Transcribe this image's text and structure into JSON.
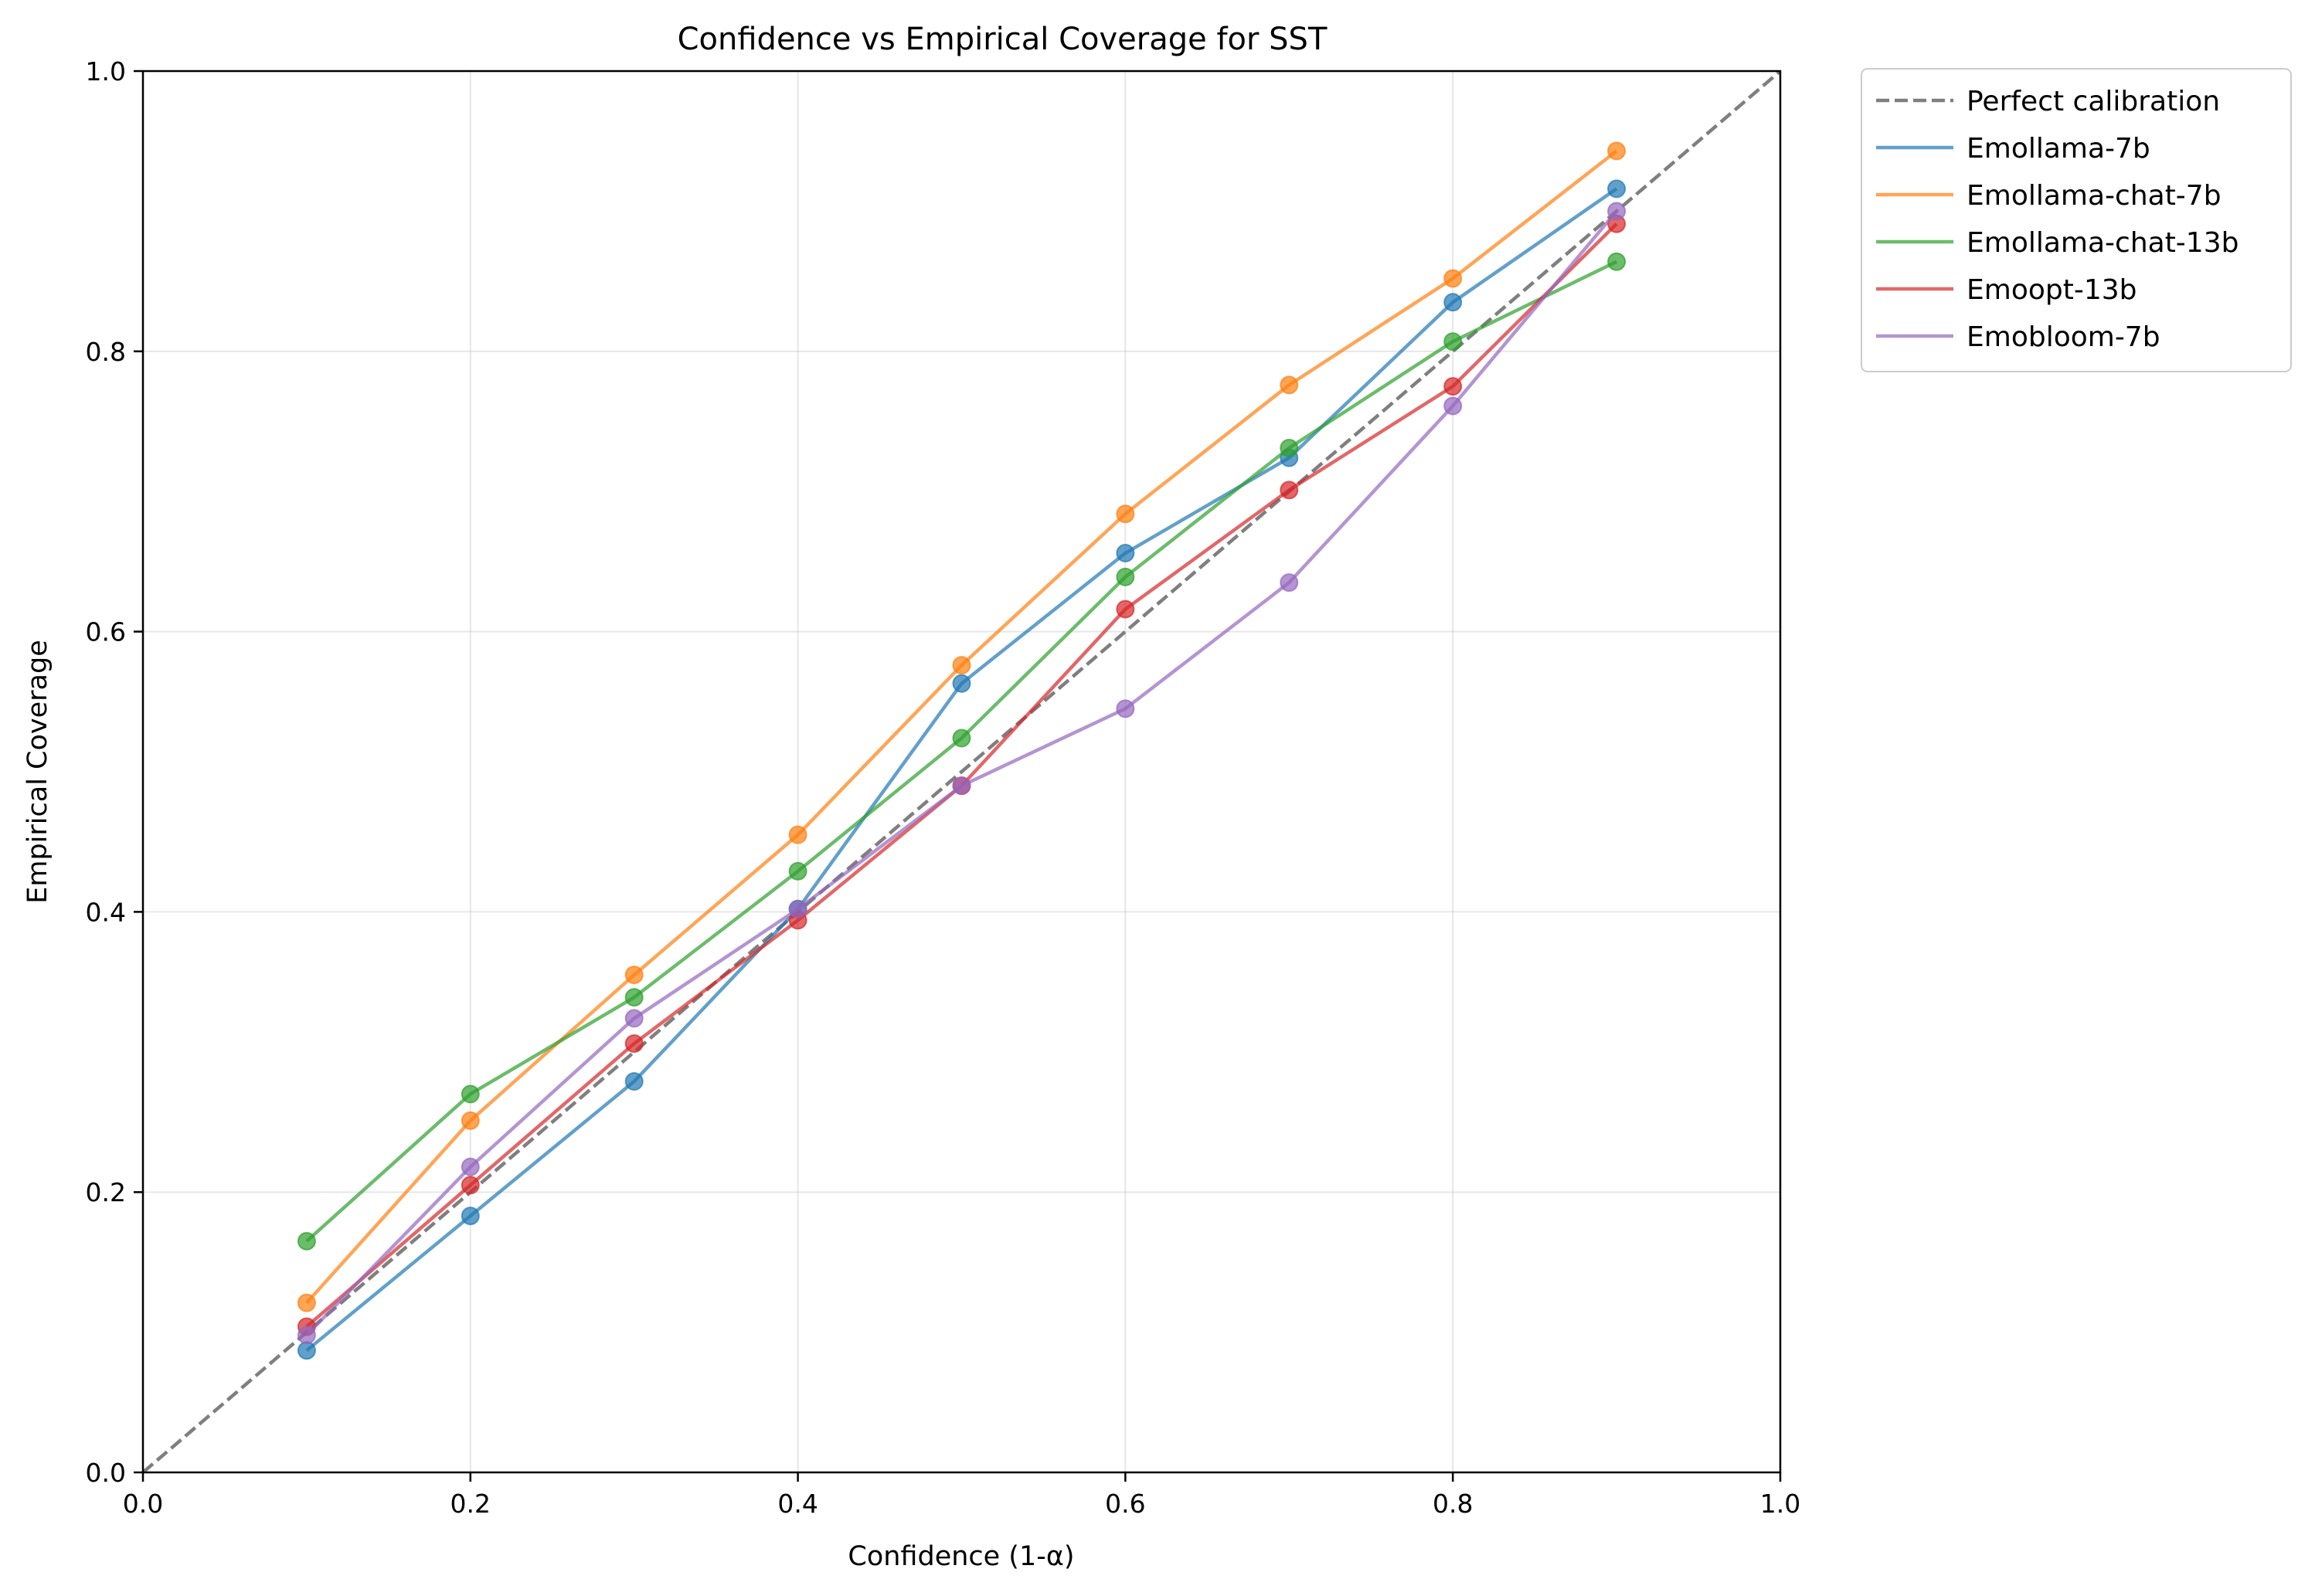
{
  "chart_data": {
    "type": "line",
    "title": "Confidence vs Empirical Coverage for SST",
    "xlabel": "Confidence (1-α)",
    "ylabel": "Empirical Coverage",
    "xlim": [
      0.0,
      1.0
    ],
    "ylim": [
      0.0,
      1.0
    ],
    "xticks": [
      "0.0",
      "0.2",
      "0.4",
      "0.6",
      "0.8",
      "1.0"
    ],
    "yticks": [
      "0.0",
      "0.2",
      "0.4",
      "0.6",
      "0.8",
      "1.0"
    ],
    "grid": true,
    "legend_position": "outside-upper-right",
    "x": [
      0.1,
      0.2,
      0.3,
      0.4,
      0.5,
      0.6,
      0.7,
      0.8,
      0.9
    ],
    "reference_line": {
      "name": "Perfect calibration",
      "x": [
        0.0,
        1.0
      ],
      "y": [
        0.0,
        1.0
      ],
      "color": "#7f7f7f",
      "style": "dashed"
    },
    "series": [
      {
        "name": "Emollama-7b",
        "color": "#1f77b4",
        "values": [
          0.087,
          0.183,
          0.279,
          0.402,
          0.563,
          0.656,
          0.724,
          0.835,
          0.916
        ]
      },
      {
        "name": "Emollama-chat-7b",
        "color": "#ff7f0e",
        "values": [
          0.121,
          0.251,
          0.355,
          0.455,
          0.576,
          0.684,
          0.776,
          0.852,
          0.943
        ]
      },
      {
        "name": "Emollama-chat-13b",
        "color": "#2ca02c",
        "values": [
          0.165,
          0.27,
          0.339,
          0.429,
          0.524,
          0.639,
          0.731,
          0.807,
          0.864
        ]
      },
      {
        "name": "Emoopt-13b",
        "color": "#d62728",
        "values": [
          0.104,
          0.205,
          0.306,
          0.394,
          0.49,
          0.616,
          0.701,
          0.775,
          0.891
        ]
      },
      {
        "name": "Emobloom-7b",
        "color": "#9467bd",
        "values": [
          0.098,
          0.218,
          0.324,
          0.402,
          0.49,
          0.545,
          0.635,
          0.761,
          0.9
        ]
      }
    ]
  }
}
